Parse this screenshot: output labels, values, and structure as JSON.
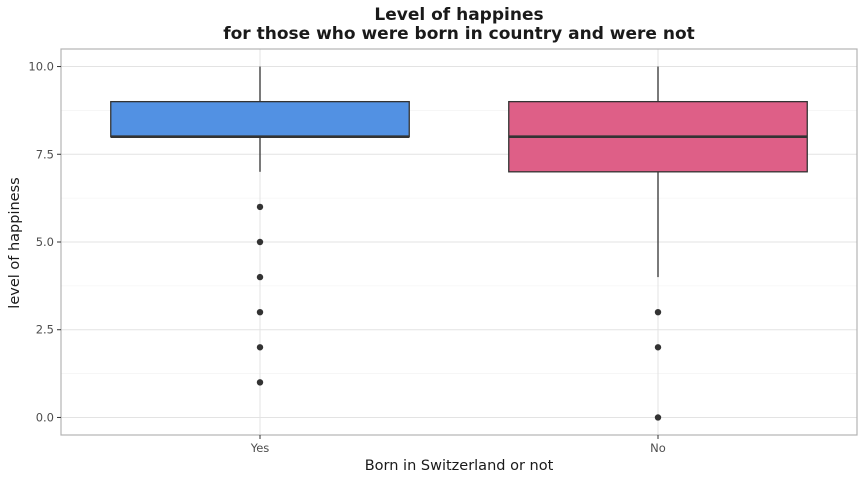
{
  "chart_data": {
    "type": "boxplot",
    "title": [
      "Level of happines",
      "for those who were born in country and were not"
    ],
    "xlabel": "Born in Switzerland or not",
    "ylabel": "level of happiness",
    "ylim": [
      -0.5,
      10.5
    ],
    "yticks": [
      0,
      2.5,
      5,
      7.5,
      10
    ],
    "yticklabels": [
      "0.0",
      "2.5",
      "5.0",
      "7.5",
      "10.0"
    ],
    "grid": true,
    "categories": [
      "Yes",
      "No"
    ],
    "boxes": [
      {
        "category": "Yes",
        "color": "#5291e3",
        "whisker_low": 7,
        "q1": 8,
        "median": 8,
        "q3": 9,
        "whisker_high": 10,
        "outliers": [
          6,
          5,
          4,
          3,
          2,
          1
        ]
      },
      {
        "category": "No",
        "color": "#de5f87",
        "whisker_low": 4,
        "q1": 7,
        "median": 8,
        "q3": 9,
        "whisker_high": 10,
        "outliers": [
          3,
          2,
          0
        ]
      }
    ]
  }
}
